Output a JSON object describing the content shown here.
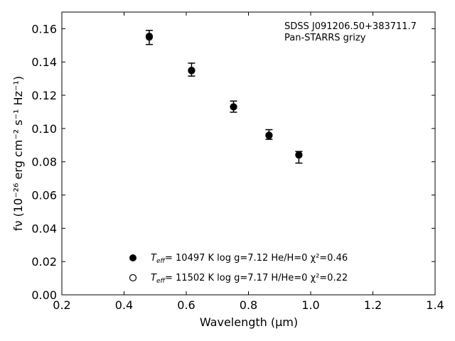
{
  "chart_data": {
    "type": "scatter",
    "annotation_lines": [
      "SDSS J091206.50+383711.7",
      "Pan-STARRS grizy"
    ],
    "xlabel": "Wavelength (μm)",
    "ylabel": "fν (10⁻²⁶ erg cm⁻² s⁻¹ Hz⁻¹)",
    "xlim": [
      0.2,
      1.4
    ],
    "ylim": [
      0.0,
      0.17
    ],
    "xticks": [
      0.2,
      0.4,
      0.6,
      0.8,
      1.0,
      1.2,
      1.4
    ],
    "yticks": [
      0.0,
      0.02,
      0.04,
      0.06,
      0.08,
      0.1,
      0.12,
      0.14,
      0.16
    ],
    "xtick_labels": [
      "0.2",
      "0.4",
      "0.6",
      "0.8",
      "1.0",
      "1.2",
      "1.4"
    ],
    "ytick_labels": [
      "0.00",
      "0.02",
      "0.04",
      "0.06",
      "0.08",
      "0.10",
      "0.12",
      "0.14",
      "0.16"
    ],
    "grid": false,
    "observed": {
      "x": [
        0.481,
        0.617,
        0.752,
        0.866,
        0.962
      ],
      "y": [
        0.1545,
        0.1345,
        0.1125,
        0.0955,
        0.0835
      ],
      "yerr_low": [
        0.1505,
        0.1315,
        0.1098,
        0.0935,
        0.0792
      ],
      "yerr_high": [
        0.159,
        0.1393,
        0.1165,
        0.0993,
        0.0862
      ]
    },
    "model_he": {
      "x": [
        0.481,
        0.617,
        0.752,
        0.866,
        0.962
      ],
      "y": [
        0.1555,
        0.135,
        0.113,
        0.096,
        0.084
      ]
    },
    "model_h": {
      "x": [
        0.481,
        0.617,
        0.752,
        0.866,
        0.962
      ],
      "y": [
        0.155,
        0.1348,
        0.113,
        0.0958,
        0.0842
      ]
    },
    "legend": [
      {
        "marker": "filled",
        "teff": "T",
        "teff_sub": "eff",
        "text": "= 10497 K  log g=7.12  He/H=0  χ²=0.46"
      },
      {
        "marker": "open",
        "teff": "T",
        "teff_sub": "eff",
        "text": "= 11502 K  log g=7.17  H/He=0  χ²=0.22"
      }
    ],
    "colors": {
      "marker": "#000000",
      "axes": "#000000"
    }
  }
}
